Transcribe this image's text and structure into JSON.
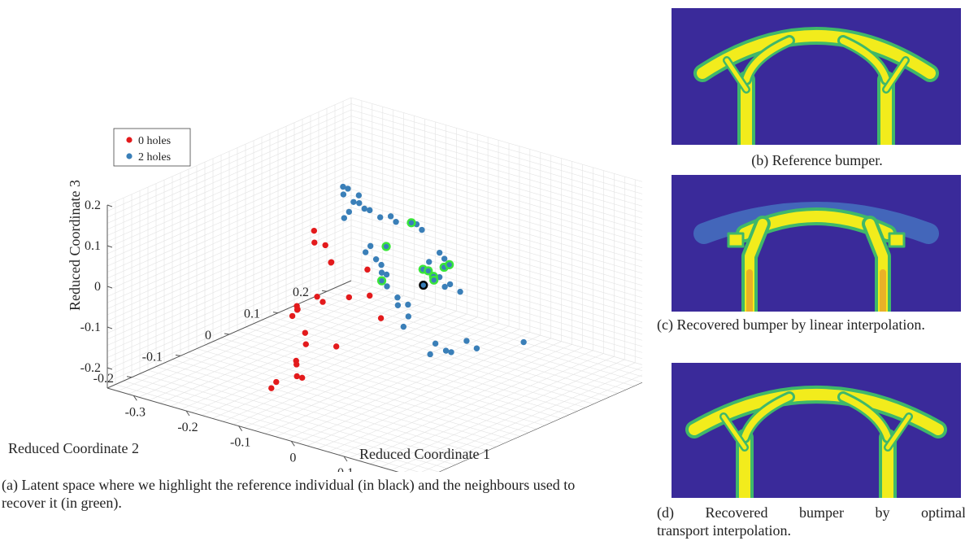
{
  "chart_data": {
    "type": "scatter",
    "dimensions": 3,
    "xlabel": "Reduced Coordinate 1",
    "ylabel": "Reduced Coordinate 2",
    "zlabel": "Reduced Coordinate 3",
    "xticks": [
      "-0.3",
      "-0.2",
      "-0.1",
      "0",
      "0.1",
      "0.2"
    ],
    "yticks": [
      "-0.2",
      "-0.1",
      "0",
      "0.1",
      "0.2"
    ],
    "zticks": [
      "-0.2",
      "-0.1",
      "0",
      "0.1",
      "0.2"
    ],
    "xlim": [
      -0.35,
      0.25
    ],
    "ylim": [
      -0.25,
      0.25
    ],
    "zlim": [
      -0.25,
      0.2
    ],
    "grid": true,
    "legend_placement": "top-left",
    "legend": [
      {
        "label": "0 holes",
        "color": "#e31a1c"
      },
      {
        "label": "2 holes",
        "color": "#3a7fb8"
      }
    ],
    "highlight_colors": {
      "reference": "#000000",
      "neighbours": "#39e639"
    },
    "series": [
      {
        "name": "0 holes",
        "color": "#e31a1c",
        "points": [
          {
            "x": -0.3,
            "y": 0.12,
            "z": -0.04
          },
          {
            "x": -0.29,
            "y": 0.11,
            "z": -0.06
          },
          {
            "x": -0.26,
            "y": 0.1,
            "z": -0.05
          },
          {
            "x": -0.23,
            "y": 0.08,
            "z": -0.07
          },
          {
            "x": -0.24,
            "y": 0.09,
            "z": -0.08
          },
          {
            "x": -0.18,
            "y": 0.1,
            "z": -0.08
          },
          {
            "x": -0.22,
            "y": 0.04,
            "z": -0.13
          },
          {
            "x": -0.2,
            "y": 0.03,
            "z": -0.13
          },
          {
            "x": -0.24,
            "y": 0.02,
            "z": -0.15
          },
          {
            "x": -0.23,
            "y": 0.01,
            "z": -0.15
          },
          {
            "x": -0.22,
            "y": 0.0,
            "z": -0.14
          },
          {
            "x": -0.23,
            "y": 0.0,
            "z": -0.16
          },
          {
            "x": -0.15,
            "y": 0.03,
            "z": -0.1
          },
          {
            "x": -0.12,
            "y": 0.04,
            "z": -0.09
          },
          {
            "x": -0.08,
            "y": 0.02,
            "z": -0.12
          },
          {
            "x": -0.1,
            "y": -0.05,
            "z": -0.16
          },
          {
            "x": -0.15,
            "y": -0.06,
            "z": -0.14
          },
          {
            "x": -0.13,
            "y": -0.08,
            "z": -0.15
          },
          {
            "x": -0.13,
            "y": -0.1,
            "z": -0.18
          },
          {
            "x": -0.12,
            "y": -0.11,
            "z": -0.18
          },
          {
            "x": -0.11,
            "y": -0.12,
            "z": -0.2
          },
          {
            "x": -0.1,
            "y": -0.12,
            "z": -0.2
          },
          {
            "x": -0.14,
            "y": -0.13,
            "z": -0.22
          },
          {
            "x": -0.14,
            "y": -0.14,
            "z": -0.23
          }
        ]
      },
      {
        "name": "2 holes",
        "color": "#3a7fb8",
        "points": [
          {
            "x": -0.18,
            "y": 0.05,
            "z": 0.15
          },
          {
            "x": -0.18,
            "y": 0.06,
            "z": 0.14
          },
          {
            "x": -0.17,
            "y": 0.04,
            "z": 0.14
          },
          {
            "x": -0.15,
            "y": 0.05,
            "z": 0.14
          },
          {
            "x": -0.14,
            "y": 0.04,
            "z": 0.13
          },
          {
            "x": -0.16,
            "y": 0.05,
            "z": 0.12
          },
          {
            "x": -0.15,
            "y": 0.03,
            "z": 0.11
          },
          {
            "x": -0.15,
            "y": 0.02,
            "z": 0.1
          },
          {
            "x": -0.13,
            "y": 0.04,
            "z": 0.12
          },
          {
            "x": -0.12,
            "y": 0.04,
            "z": 0.12
          },
          {
            "x": -0.1,
            "y": 0.04,
            "z": 0.11
          },
          {
            "x": -0.08,
            "y": 0.04,
            "z": 0.12
          },
          {
            "x": -0.07,
            "y": 0.04,
            "z": 0.11
          },
          {
            "x": -0.04,
            "y": 0.05,
            "z": 0.11
          },
          {
            "x": -0.03,
            "y": 0.05,
            "z": 0.1
          },
          {
            "x": -0.1,
            "y": 0.02,
            "z": 0.05
          },
          {
            "x": -0.1,
            "y": 0.01,
            "z": 0.04
          },
          {
            "x": -0.08,
            "y": 0.01,
            "z": 0.03
          },
          {
            "x": -0.07,
            "y": 0.01,
            "z": 0.02
          },
          {
            "x": -0.06,
            "y": 0.0,
            "z": 0.01
          },
          {
            "x": -0.06,
            "y": 0.01,
            "z": 0.0
          },
          {
            "x": -0.05,
            "y": 0.0,
            "z": -0.02
          },
          {
            "x": -0.03,
            "y": 0.0,
            "z": -0.04
          },
          {
            "x": -0.01,
            "y": 0.0,
            "z": -0.05
          },
          {
            "x": -0.02,
            "y": -0.01,
            "z": -0.05
          },
          {
            "x": 0.0,
            "y": -0.01,
            "z": -0.07
          },
          {
            "x": 0.0,
            "y": -0.02,
            "z": -0.09
          },
          {
            "x": 0.05,
            "y": 0.0,
            "z": 0.04
          },
          {
            "x": 0.06,
            "y": 0.0,
            "z": 0.02
          },
          {
            "x": 0.07,
            "y": 0.0,
            "z": 0.03
          },
          {
            "x": 0.08,
            "y": 0.01,
            "z": 0.01
          },
          {
            "x": 0.07,
            "y": -0.03,
            "z": -0.1
          },
          {
            "x": 0.09,
            "y": -0.03,
            "z": -0.11
          },
          {
            "x": 0.1,
            "y": -0.03,
            "z": -0.11
          },
          {
            "x": 0.12,
            "y": -0.02,
            "z": -0.08
          },
          {
            "x": 0.13,
            "y": -0.01,
            "z": -0.1
          },
          {
            "x": 0.21,
            "y": 0.0,
            "z": -0.06
          },
          {
            "x": 0.06,
            "y": -0.03,
            "z": -0.13
          },
          {
            "x": 0.05,
            "y": 0.0,
            "z": 0.1
          },
          {
            "x": 0.05,
            "y": 0.01,
            "z": 0.08
          },
          {
            "x": 0.03,
            "y": 0.0,
            "z": 0.07
          }
        ]
      },
      {
        "name": "",
        "color": "#39e639",
        "points": [
          {
            "x": -0.05,
            "y": 0.05,
            "z": 0.11
          },
          {
            "x": -0.07,
            "y": 0.02,
            "z": 0.06
          },
          {
            "x": -0.06,
            "y": 0.0,
            "z": -0.01
          },
          {
            "x": 0.0,
            "y": 0.02,
            "z": 0.03
          },
          {
            "x": 0.01,
            "y": 0.02,
            "z": 0.03
          },
          {
            "x": 0.02,
            "y": 0.02,
            "z": 0.02
          },
          {
            "x": 0.03,
            "y": 0.01,
            "z": 0.02
          },
          {
            "x": 0.04,
            "y": 0.02,
            "z": 0.05
          },
          {
            "x": 0.05,
            "y": 0.02,
            "z": 0.06
          }
        ]
      },
      {
        "name": "",
        "color": "#000000",
        "points": [
          {
            "x": 0.01,
            "y": 0.01,
            "z": 0.0
          }
        ]
      }
    ]
  },
  "captions": {
    "a": "(a) Latent space where we highlight the reference individual (in black) and the neighbours used to recover it (in green).",
    "b": "(b) Reference bumper.",
    "c": "(c) Recovered bumper by linear interpolation.",
    "d_line1": "(d) Recovered bumper by optimal",
    "d_line2": "transport interpolation."
  },
  "colors": {
    "field_background": "#3a2a9a",
    "material": "#f2ec1c",
    "material_edge": "#3fb86a"
  }
}
